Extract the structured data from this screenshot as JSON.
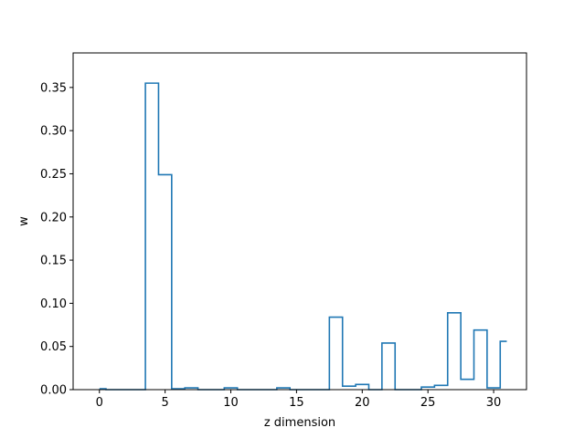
{
  "chart_data": {
    "type": "line",
    "drawstyle": "steps-mid",
    "title": "",
    "xlabel": "z dimension",
    "ylabel": "w",
    "xlim": [
      -2,
      32.5
    ],
    "ylim": [
      0,
      0.39
    ],
    "grid": false,
    "line_color": "#1f77b4",
    "x_ticks": [
      0,
      5,
      10,
      15,
      20,
      25,
      30
    ],
    "y_ticks": [
      0.0,
      0.05,
      0.1,
      0.15,
      0.2,
      0.25,
      0.3,
      0.35
    ],
    "x_tick_labels": [
      "0",
      "5",
      "10",
      "15",
      "20",
      "25",
      "30"
    ],
    "y_tick_labels": [
      "0.00",
      "0.05",
      "0.10",
      "0.15",
      "0.20",
      "0.25",
      "0.30",
      "0.35"
    ],
    "x": [
      0,
      1,
      2,
      3,
      4,
      5,
      6,
      7,
      8,
      9,
      10,
      11,
      12,
      13,
      14,
      15,
      16,
      17,
      18,
      19,
      20,
      21,
      22,
      23,
      24,
      25,
      26,
      27,
      28,
      29,
      30,
      31
    ],
    "values": [
      0.001,
      0.0,
      0.0,
      0.0,
      0.355,
      0.249,
      0.001,
      0.002,
      0.0,
      0.0,
      0.002,
      0.0,
      0.0,
      0.0,
      0.002,
      0.0,
      0.0,
      0.0,
      0.084,
      0.004,
      0.006,
      0.0,
      0.054,
      0.0,
      0.0,
      0.003,
      0.005,
      0.089,
      0.012,
      0.069,
      0.002,
      0.056
    ]
  }
}
